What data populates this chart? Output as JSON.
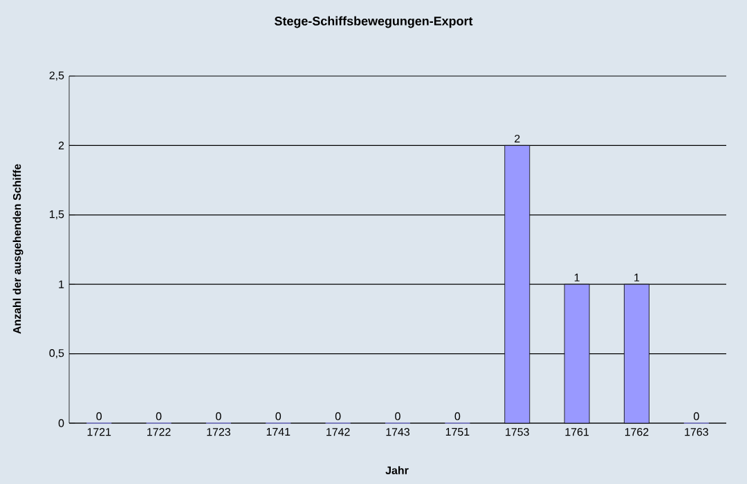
{
  "chart_data": {
    "type": "bar",
    "title": "Stege-Schiffsbewegungen-Export",
    "xlabel": "Jahr",
    "ylabel": "Anzahl der ausgehenden Schiffe",
    "categories": [
      "1721",
      "1722",
      "1723",
      "1741",
      "1742",
      "1743",
      "1751",
      "1753",
      "1761",
      "1762",
      "1763"
    ],
    "values": [
      0,
      0,
      0,
      0,
      0,
      0,
      0,
      2,
      1,
      1,
      0
    ],
    "color": "#9999ff",
    "ylim": [
      0,
      2.5
    ],
    "yticks": [
      0,
      {
        "value": 0.5,
        "label": "0,5"
      },
      1,
      {
        "value": 1.5,
        "label": "1,5"
      },
      2,
      {
        "value": 2.5,
        "label": "2,5"
      }
    ],
    "grid": "y",
    "data_labels": true
  }
}
